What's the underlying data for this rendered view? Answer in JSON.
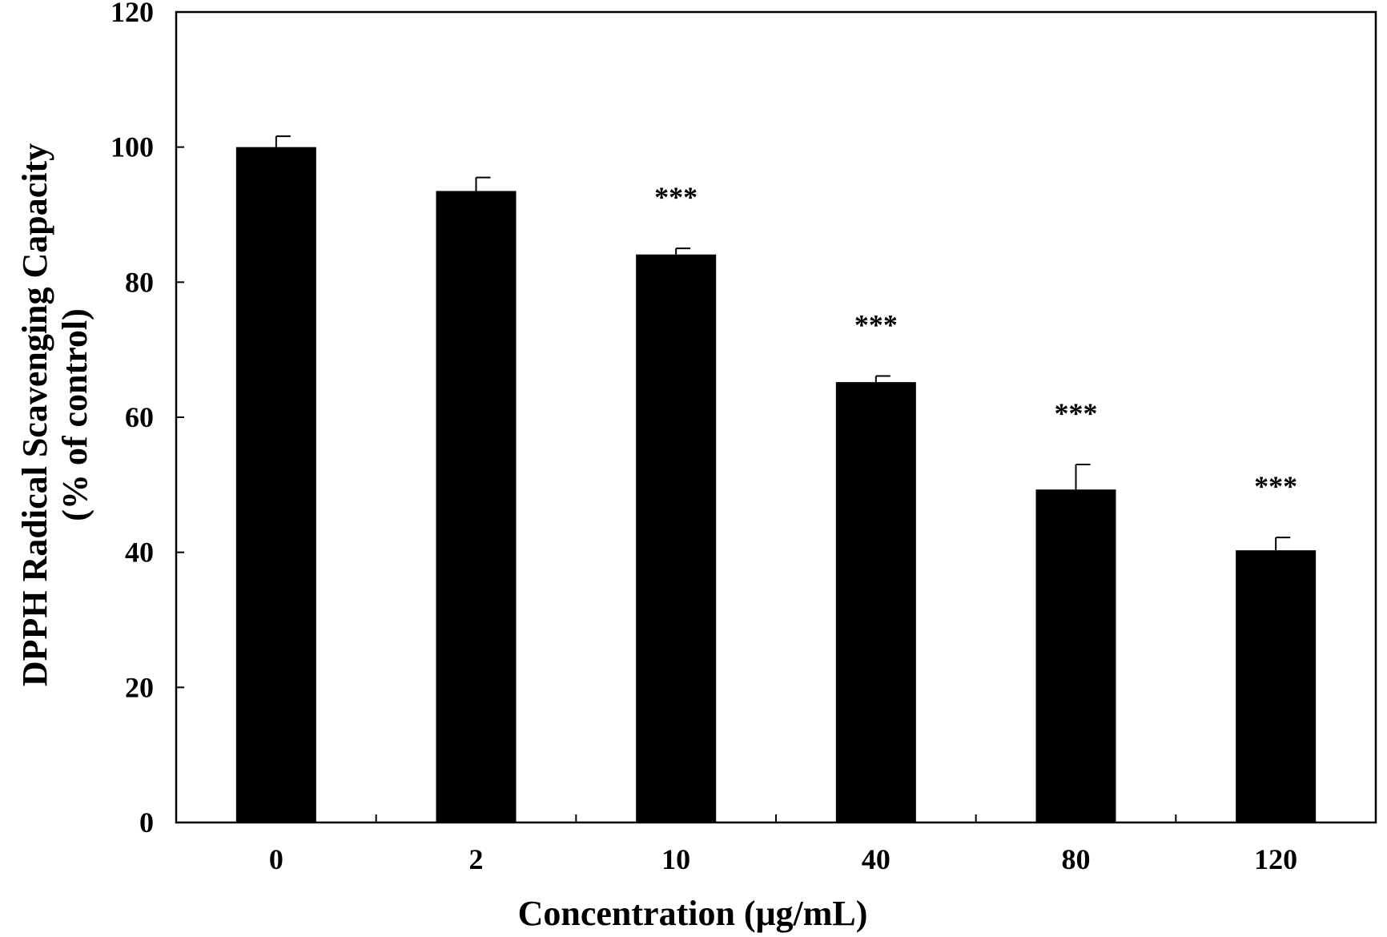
{
  "chart_data": {
    "type": "bar",
    "categories": [
      "0",
      "2",
      "10",
      "40",
      "80",
      "120"
    ],
    "values": [
      100.0,
      93.5,
      84.1,
      65.2,
      49.3,
      40.3
    ],
    "errors": [
      1.6,
      2.0,
      0.9,
      0.9,
      3.7,
      1.9
    ],
    "annotations": [
      "",
      "",
      "***",
      "***",
      "***",
      "***"
    ],
    "title": "",
    "xlabel": "Concentration (μg/mL)",
    "ylabel_lines": [
      "DPPH Radical Scavenging Capacity",
      "(% of control)"
    ],
    "ylim": [
      0,
      120
    ],
    "yticks": [
      0,
      20,
      40,
      60,
      80,
      100,
      120
    ],
    "grid": false,
    "legend": "none",
    "bar_color": "#000000"
  }
}
